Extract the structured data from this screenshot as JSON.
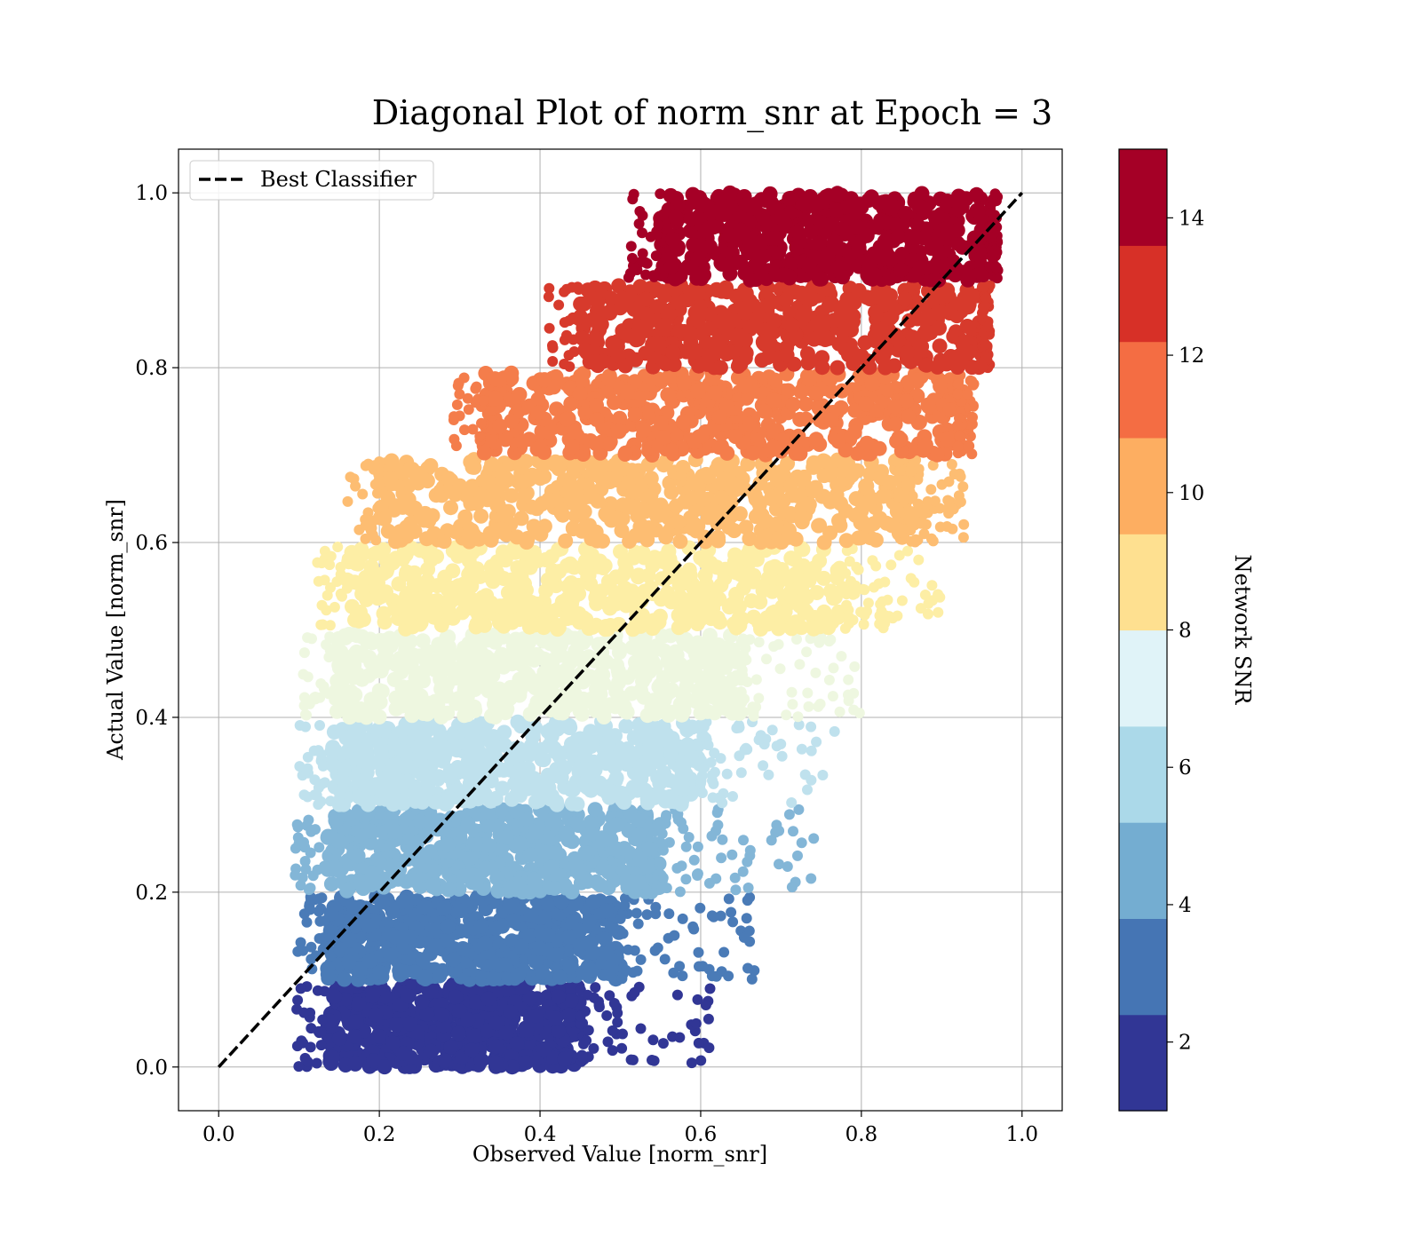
{
  "chart_data": {
    "type": "scatter",
    "title": "Diagonal Plot of norm_snr at Epoch = 3",
    "xlabel": "Observed Value [norm_snr]",
    "ylabel": "Actual Value [norm_snr]",
    "xlim": [
      -0.05,
      1.05
    ],
    "ylim": [
      -0.05,
      1.05
    ],
    "xticks": [
      "0.0",
      "0.2",
      "0.4",
      "0.6",
      "0.8",
      "1.0"
    ],
    "yticks": [
      "0.0",
      "0.2",
      "0.4",
      "0.6",
      "0.8",
      "1.0"
    ],
    "grid": true,
    "reference_line": {
      "name": "Best Classifier",
      "style": "dashed",
      "color": "#000000",
      "points": [
        [
          0.0,
          0.0
        ],
        [
          1.0,
          1.0
        ]
      ]
    },
    "legend": {
      "placement": "upper left",
      "entries": [
        "Best Classifier"
      ]
    },
    "colorbar": {
      "label": "Network SNR",
      "range": [
        1,
        15
      ],
      "ticks": [
        "2",
        "4",
        "6",
        "8",
        "10",
        "12",
        "14"
      ],
      "colors": [
        "#313695",
        "#4575b4",
        "#74add1",
        "#abd9e9",
        "#e0f3f8",
        "#fee090",
        "#fdae61",
        "#f46d43",
        "#d73027",
        "#a50026"
      ]
    },
    "point_bands": [
      {
        "snr_bin": [
          1.0,
          2.4
        ],
        "color": "#313695",
        "y_range": [
          0.0,
          0.095
        ],
        "x_core": [
          0.135,
          0.45
        ],
        "x_tail": 0.62
      },
      {
        "snr_bin": [
          2.4,
          3.8
        ],
        "color": "#4a7bb7",
        "y_range": [
          0.1,
          0.195
        ],
        "x_core": [
          0.135,
          0.5
        ],
        "x_tail": 0.67
      },
      {
        "snr_bin": [
          3.8,
          5.2
        ],
        "color": "#83b6d7",
        "y_range": [
          0.2,
          0.295
        ],
        "x_core": [
          0.135,
          0.55
        ],
        "x_tail": 0.75
      },
      {
        "snr_bin": [
          5.2,
          6.6
        ],
        "color": "#bfe1ed",
        "y_range": [
          0.3,
          0.395
        ],
        "x_core": [
          0.14,
          0.6
        ],
        "x_tail": 0.77
      },
      {
        "snr_bin": [
          6.6,
          8.0
        ],
        "color": "#eef7e0",
        "y_range": [
          0.4,
          0.495
        ],
        "x_core": [
          0.145,
          0.65
        ],
        "x_tail": 0.8
      },
      {
        "snr_bin": [
          8.0,
          9.4
        ],
        "color": "#fdeea5",
        "y_range": [
          0.5,
          0.595
        ],
        "x_core": [
          0.16,
          0.78
        ],
        "x_tail": 0.9
      },
      {
        "snr_bin": [
          9.4,
          10.8
        ],
        "color": "#fdbd72",
        "y_range": [
          0.6,
          0.695
        ],
        "x_core": [
          0.2,
          0.86
        ],
        "x_tail": 0.93
      },
      {
        "snr_bin": [
          10.8,
          12.2
        ],
        "color": "#f47d4b",
        "y_range": [
          0.7,
          0.795
        ],
        "x_core": [
          0.33,
          0.92
        ],
        "x_tail": 0.94
      },
      {
        "snr_bin": [
          12.2,
          13.6
        ],
        "color": "#d73a2c",
        "y_range": [
          0.8,
          0.895
        ],
        "x_core": [
          0.45,
          0.95
        ],
        "x_tail": 0.96
      },
      {
        "snr_bin": [
          13.6,
          15.0
        ],
        "color": "#a50026",
        "y_range": [
          0.9,
          1.0
        ],
        "x_core": [
          0.55,
          0.96
        ],
        "x_tail": 0.97
      }
    ]
  }
}
